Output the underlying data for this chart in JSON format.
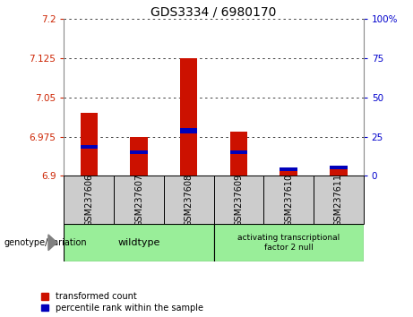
{
  "title": "GDS3334 / 6980170",
  "samples": [
    "GSM237606",
    "GSM237607",
    "GSM237608",
    "GSM237609",
    "GSM237610",
    "GSM237611"
  ],
  "baseline": 6.9,
  "red_tops": [
    7.02,
    6.975,
    7.125,
    6.985,
    6.914,
    6.916
  ],
  "blue_bottoms": [
    6.952,
    6.942,
    6.982,
    6.942,
    6.91,
    6.913
  ],
  "blue_heights": [
    0.007,
    0.007,
    0.009,
    0.007,
    0.007,
    0.007
  ],
  "ylim_left": [
    6.9,
    7.2
  ],
  "yticks_left": [
    6.9,
    6.975,
    7.05,
    7.125,
    7.2
  ],
  "ylim_right": [
    0,
    100
  ],
  "yticks_right": [
    0,
    25,
    50,
    75,
    100
  ],
  "ytick_labels_right": [
    "0",
    "25",
    "50",
    "75",
    "100%"
  ],
  "left_tick_color": "#cc2200",
  "right_tick_color": "#0000cc",
  "bar_color_red": "#cc1100",
  "bar_color_blue": "#0000bb",
  "grid_color": "#222222",
  "group1_samples": [
    0,
    1,
    2
  ],
  "group2_samples": [
    3,
    4,
    5
  ],
  "group1_label": "wildtype",
  "group2_label": "activating transcriptional\nfactor 2 null",
  "group_bg_color": "#99ee99",
  "sample_bg_color": "#cccccc",
  "bar_width": 0.35,
  "legend_red_label": "transformed count",
  "legend_blue_label": "percentile rank within the sample",
  "genotype_label": "genotype/variation",
  "title_fontsize": 10,
  "tick_fontsize": 7.5,
  "label_fontsize": 7.5
}
